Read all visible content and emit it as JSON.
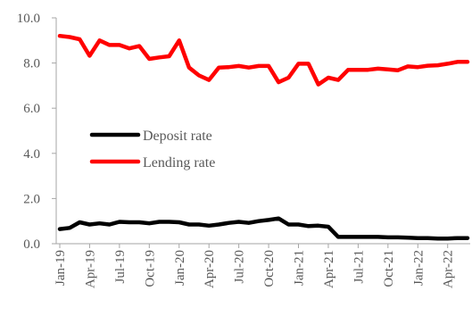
{
  "chart_data": {
    "type": "line",
    "title": "",
    "xlabel": "",
    "ylabel": "",
    "ylim": [
      0,
      10
    ],
    "y_ticks": [
      "0.0",
      "2.0",
      "4.0",
      "6.0",
      "8.0",
      "10.0"
    ],
    "x_tick_labels": [
      "Jan-19",
      "Apr-19",
      "Jul-19",
      "Oct-19",
      "Jan-20",
      "Apr-20",
      "Jul-20",
      "Oct-20",
      "Jan-21",
      "Apr-21",
      "Jul-21",
      "Oct-21",
      "Jan-22",
      "Apr-22"
    ],
    "x": [
      "Jan-19",
      "Feb-19",
      "Mar-19",
      "Apr-19",
      "May-19",
      "Jun-19",
      "Jul-19",
      "Aug-19",
      "Sep-19",
      "Oct-19",
      "Nov-19",
      "Dec-19",
      "Jan-20",
      "Feb-20",
      "Mar-20",
      "Apr-20",
      "May-20",
      "Jun-20",
      "Jul-20",
      "Aug-20",
      "Sep-20",
      "Oct-20",
      "Nov-20",
      "Dec-20",
      "Jan-21",
      "Feb-21",
      "Mar-21",
      "Apr-21",
      "May-21",
      "Jun-21",
      "Jul-21",
      "Aug-21",
      "Sep-21",
      "Oct-21",
      "Nov-21",
      "Dec-21",
      "Jan-22",
      "Feb-22",
      "Mar-22",
      "Apr-22",
      "May-22",
      "Jun-22"
    ],
    "legend_position": "center-left",
    "grid": false,
    "series": [
      {
        "name": "Deposit rate",
        "color": "#000000",
        "values": [
          0.65,
          0.7,
          0.95,
          0.85,
          0.9,
          0.85,
          0.97,
          0.95,
          0.95,
          0.9,
          0.97,
          0.97,
          0.95,
          0.85,
          0.85,
          0.8,
          0.85,
          0.92,
          0.97,
          0.92,
          1.0,
          1.05,
          1.12,
          0.85,
          0.85,
          0.78,
          0.8,
          0.75,
          0.3,
          0.3,
          0.3,
          0.3,
          0.3,
          0.28,
          0.28,
          0.27,
          0.25,
          0.25,
          0.23,
          0.23,
          0.25,
          0.25
        ]
      },
      {
        "name": "Lending rate",
        "color": "#ff0000",
        "values": [
          9.2,
          9.15,
          9.05,
          8.32,
          9.0,
          8.8,
          8.8,
          8.65,
          8.75,
          8.18,
          8.25,
          8.3,
          9.0,
          7.8,
          7.45,
          7.25,
          7.8,
          7.82,
          7.87,
          7.8,
          7.87,
          7.87,
          7.15,
          7.35,
          7.97,
          7.97,
          7.05,
          7.35,
          7.25,
          7.7,
          7.7,
          7.7,
          7.75,
          7.72,
          7.68,
          7.85,
          7.82,
          7.88,
          7.9,
          7.97,
          8.05,
          8.05
        ]
      }
    ]
  }
}
